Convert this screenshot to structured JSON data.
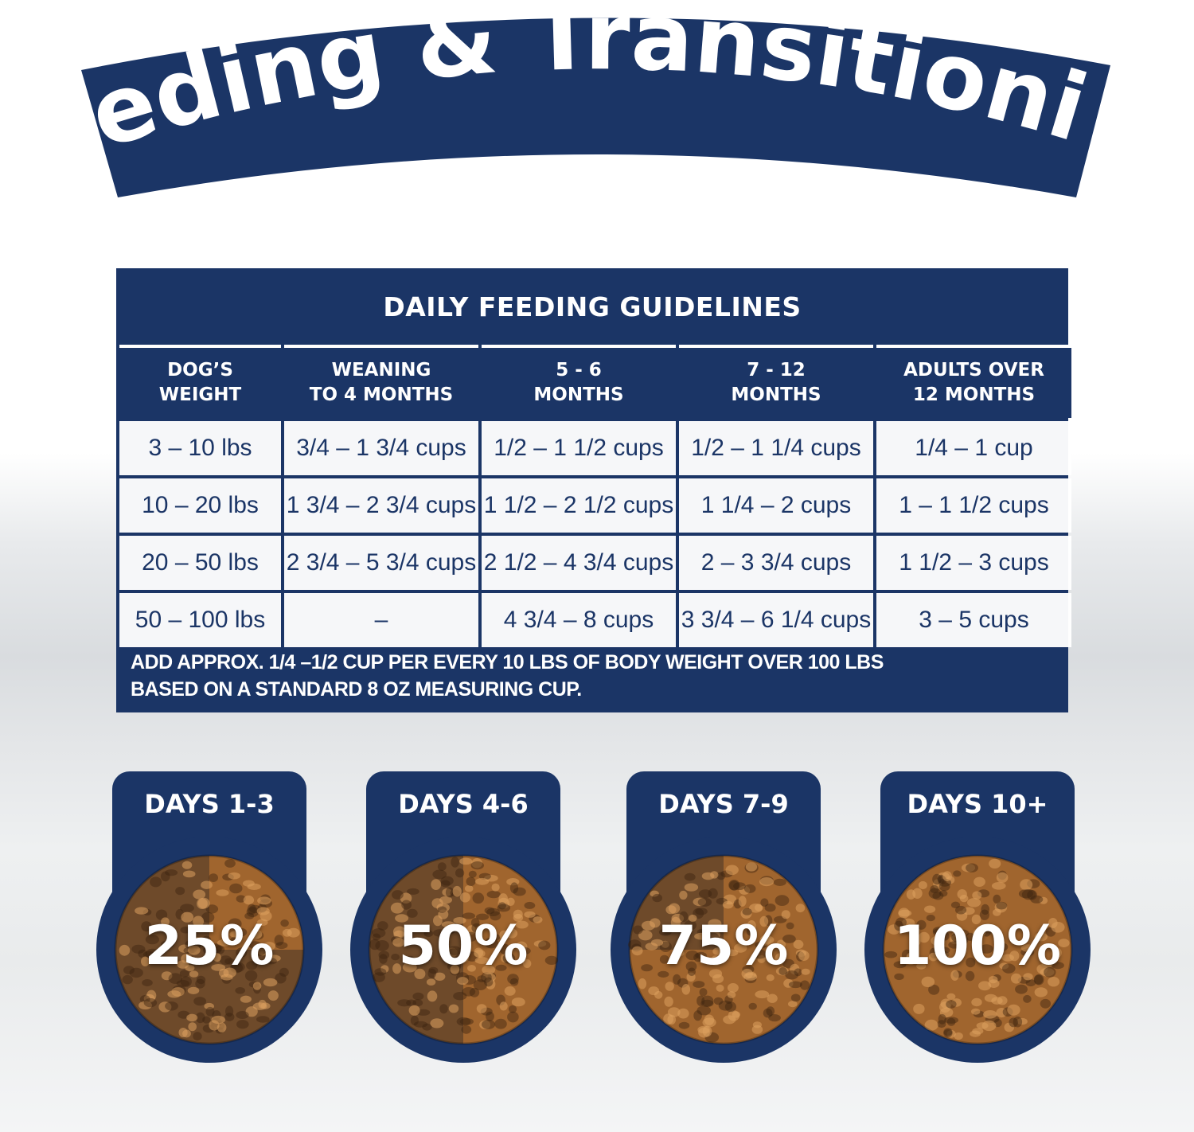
{
  "banner": {
    "title": "Feeding & Transitioning"
  },
  "table": {
    "title": "DAILY FEEDING GUIDELINES",
    "headers": [
      "DOG’S\nWEIGHT",
      "WEANING\nTO 4 MONTHS",
      "5 - 6\nMONTHS",
      "7 - 12\nMONTHS",
      "ADULTS OVER\n12 MONTHS"
    ],
    "rows": [
      [
        "3 – 10 lbs",
        "3/4 – 1 3/4 cups",
        "1/2 – 1 1/2 cups",
        "1/2 – 1 1/4 cups",
        "1/4 – 1 cup"
      ],
      [
        "10 – 20 lbs",
        "1 3/4 – 2 3/4 cups",
        "1 1/2 – 2 1/2 cups",
        "1 1/4 – 2 cups",
        "1 – 1 1/2 cups"
      ],
      [
        "20 – 50 lbs",
        "2 3/4 – 5 3/4 cups",
        "2 1/2 – 4 3/4 cups",
        "2 – 3 3/4 cups",
        "1 1/2 – 3 cups"
      ],
      [
        "50 – 100 lbs",
        "–",
        "4 3/4 – 8 cups",
        "3 3/4 – 6 1/4 cups",
        "3 – 5 cups"
      ]
    ],
    "note_line1": "ADD APPROX. 1/4 –1/2 CUP PER EVERY 10 LBS OF BODY WEIGHT OVER 100 LBS",
    "note_line2": "BASED ON A STANDARD 8 OZ MEASURING CUP."
  },
  "transition": [
    {
      "label": "DAYS 1-3",
      "percent_text": "25%",
      "new_food_fraction": 0.25
    },
    {
      "label": "DAYS 4-6",
      "percent_text": "50%",
      "new_food_fraction": 0.5
    },
    {
      "label": "DAYS 7-9",
      "percent_text": "75%",
      "new_food_fraction": 0.75
    },
    {
      "label": "DAYS 10+",
      "percent_text": "100%",
      "new_food_fraction": 1.0
    }
  ],
  "colors": {
    "navy": "#1b3566",
    "kibble_new": "#a0652e",
    "kibble_old": "#6e4a2a"
  }
}
